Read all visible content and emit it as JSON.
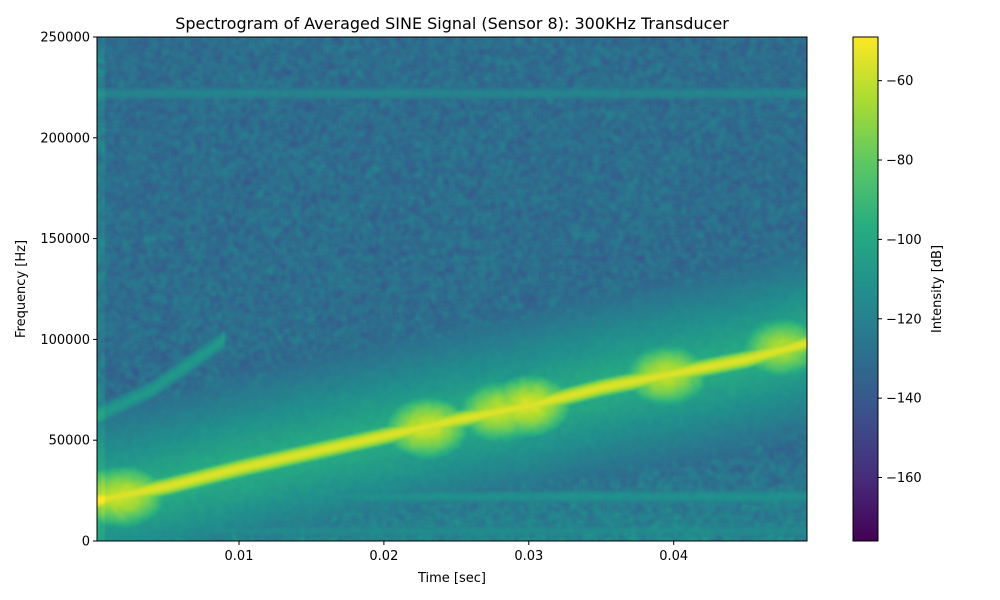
{
  "chart_data": {
    "type": "heatmap",
    "title": "Spectrogram of Averaged SINE Signal (Sensor 8): 300KHz Transducer",
    "xlabel": "Time [sec]",
    "ylabel": "Frequency [Hz]",
    "xlim": [
      0.0002,
      0.0492
    ],
    "ylim": [
      0,
      250000
    ],
    "x_ticks": [
      0.01,
      0.02,
      0.03,
      0.04
    ],
    "x_tick_labels": [
      "0.01",
      "0.02",
      "0.03",
      "0.04"
    ],
    "y_ticks": [
      0,
      50000,
      100000,
      150000,
      200000,
      250000
    ],
    "y_tick_labels": [
      "0",
      "50000",
      "100000",
      "150000",
      "200000",
      "250000"
    ],
    "colormap": "viridis",
    "colorbar": {
      "label": "Intensity [dB]",
      "range": [
        -176,
        -49
      ],
      "ticks": [
        -160,
        -140,
        -120,
        -100,
        -80,
        -60
      ],
      "tick_labels": [
        "−160",
        "−140",
        "−120",
        "−100",
        "−80",
        "−60"
      ]
    },
    "background_level_db": -130,
    "features": {
      "main_chirp": {
        "points": [
          [
            0.0002,
            20000
          ],
          [
            0.005,
            27000
          ],
          [
            0.01,
            36000
          ],
          [
            0.015,
            44000
          ],
          [
            0.02,
            52000
          ],
          [
            0.025,
            60000
          ],
          [
            0.03,
            67000
          ],
          [
            0.035,
            76000
          ],
          [
            0.04,
            83000
          ],
          [
            0.045,
            90000
          ],
          [
            0.0492,
            98000
          ]
        ],
        "level_db": -55
      },
      "hotspots": [
        {
          "t": 0.002,
          "f": 22000,
          "level_db": -58
        },
        {
          "t": 0.023,
          "f": 56000,
          "level_db": -57
        },
        {
          "t": 0.028,
          "f": 64000,
          "level_db": -60
        },
        {
          "t": 0.03,
          "f": 67000,
          "level_db": -56
        },
        {
          "t": 0.0395,
          "f": 82000,
          "level_db": -60
        },
        {
          "t": 0.0475,
          "f": 96000,
          "level_db": -63
        }
      ],
      "faint_harmonic": {
        "points": [
          [
            0.0002,
            62000
          ],
          [
            0.004,
            75000
          ],
          [
            0.009,
            100000
          ]
        ],
        "level_db": -108
      },
      "horizontal_bands": [
        {
          "f": 222000,
          "level_db": -118
        },
        {
          "f": 22000,
          "level_db": -112
        },
        {
          "f": 5000,
          "level_db": -115
        }
      ]
    }
  }
}
